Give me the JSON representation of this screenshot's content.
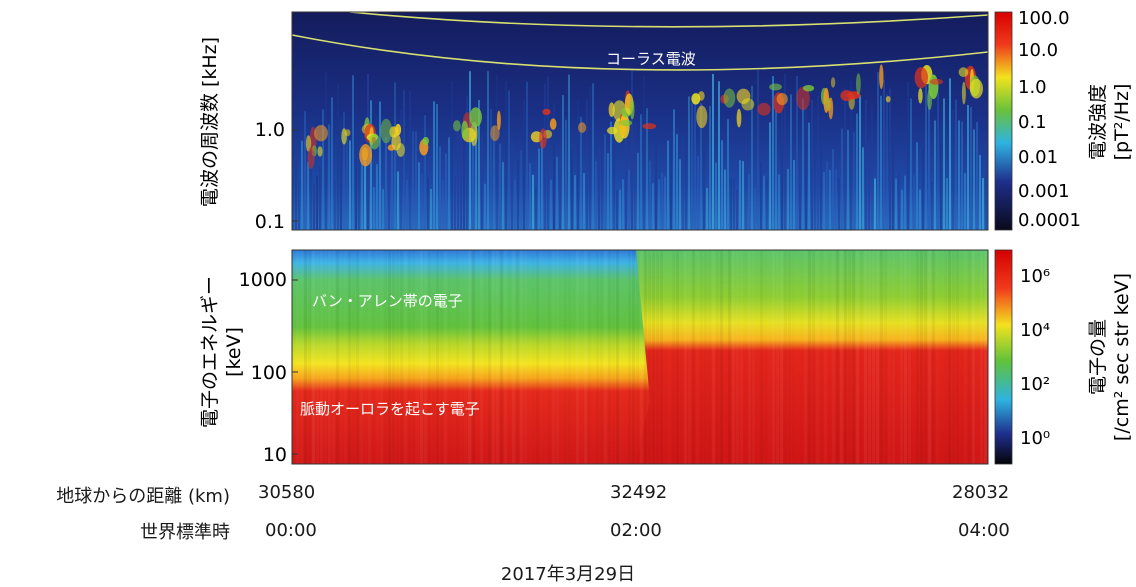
{
  "colors": {
    "background": "#ffffff",
    "wave_panel_bg": "#1a2f80",
    "particle_red": "#e01e1e",
    "overlay_line": "#d8e070"
  },
  "chart_data": [
    {
      "type": "heatmap",
      "name": "wave_spectrogram",
      "ylabel": "電波の周波数 [kHz]",
      "yscale": "log",
      "ylim": [
        0.1,
        5.0
      ],
      "yticks": [
        "1.0",
        "0.1"
      ],
      "annotation": "コーラス電波",
      "colorbar": {
        "label": "電波強度 [pT²/Hz]",
        "label_line1": "電波強度",
        "label_line2": "[pT²/Hz]",
        "scale": "log",
        "ticks": [
          "100.0",
          "10.0",
          "1.0",
          "0.1",
          "0.01",
          "0.001",
          "0.0001"
        ]
      }
    },
    {
      "type": "heatmap",
      "name": "electron_flux",
      "ylabel": "電子のエネルギー [keV]",
      "ylabel_line1": "電子のエネルギー",
      "ylabel_line2": "[keV]",
      "yscale": "log",
      "ylim": [
        5,
        2500
      ],
      "yticks": [
        "1000",
        "100",
        "10"
      ],
      "annotations": [
        "バン・アレン帯の電子",
        "脈動オーロラを起こす電子"
      ],
      "colorbar": {
        "label": "電子の量 [/cm² sec str keV]",
        "label_line1": "電子の量",
        "label_line2": "[/cm² sec str keV]",
        "scale": "log",
        "ticks": [
          "10⁶",
          "10⁴",
          "10²",
          "10⁰"
        ]
      }
    }
  ],
  "x_axis": {
    "rows": [
      {
        "title": "地球からの距離 (km)",
        "values": [
          "30580",
          "32492",
          "28032"
        ]
      },
      {
        "title": "世界標準時",
        "values": [
          "00:00",
          "02:00",
          "04:00"
        ]
      }
    ],
    "date": "2017年3月29日"
  }
}
